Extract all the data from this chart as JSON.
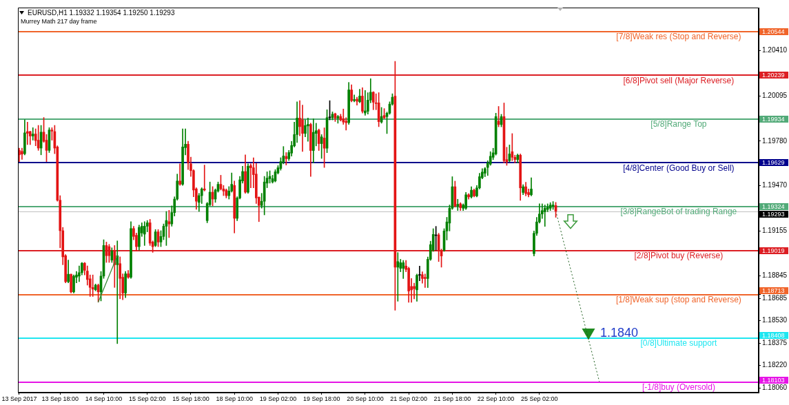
{
  "chart_data": {
    "type": "candlestick",
    "title": "EURUSD,H1 1.19332 1.19354 1.19250 1.19293",
    "subtitle": "Murrey Math 217 day frame",
    "categories": [
      "13 Sep 2017",
      null,
      null,
      null,
      null,
      null,
      null,
      null,
      null,
      null,
      null,
      null,
      null,
      null,
      null,
      "13 Sep 18:00",
      null,
      null,
      null,
      null,
      null,
      null,
      null,
      null,
      null,
      null,
      null,
      null,
      null,
      null,
      null,
      "14 Sep 10:00",
      null,
      null,
      null,
      null,
      null,
      null,
      null,
      null,
      null,
      null,
      null,
      null,
      null,
      null,
      null,
      "15 Sep 02:00",
      null,
      null,
      null,
      null,
      null,
      null,
      null,
      null,
      null,
      null,
      null,
      null,
      null,
      null,
      null,
      "15 Sep 18:00",
      null,
      null,
      null,
      null,
      null,
      null,
      null,
      null,
      null,
      null,
      null,
      null,
      null,
      null,
      null,
      "18 Sep 10:00",
      null,
      null,
      null,
      null,
      null,
      null,
      null,
      null,
      null,
      null,
      null,
      null,
      null,
      null,
      null,
      "19 Sep 02:00",
      null,
      null,
      null,
      null,
      null,
      null,
      null,
      null,
      null,
      null,
      null,
      null,
      null,
      null,
      null,
      "19 Sep 18:00",
      null,
      null,
      null,
      null,
      null,
      null,
      null,
      null,
      null,
      null,
      null,
      null,
      null,
      null,
      null,
      "20 Sep 10:00",
      null,
      null,
      null,
      null,
      null,
      null,
      null,
      null,
      null,
      null,
      null,
      null,
      null,
      null,
      null,
      "21 Sep 02:00",
      null,
      null,
      null,
      null,
      null,
      null,
      null,
      null,
      null,
      null,
      null,
      null,
      null,
      null,
      null,
      "21 Sep 18:00",
      null,
      null,
      null,
      null,
      null,
      null,
      null,
      null,
      null,
      null,
      null,
      null,
      null,
      null,
      null,
      "22 Sep 10:00",
      null,
      null,
      null,
      null,
      null,
      null,
      null,
      null,
      null,
      null,
      null,
      null,
      null,
      null,
      null,
      "25 Sep 02:00",
      null,
      null,
      null,
      null,
      null,
      null,
      null,
      null,
      null,
      null,
      null,
      null,
      null,
      null,
      null,
      null,
      null,
      null,
      null,
      null,
      null,
      null,
      null,
      null,
      null,
      null,
      null,
      null,
      null,
      null,
      null,
      null,
      null,
      null,
      null,
      null,
      null,
      null,
      null,
      null,
      null,
      null,
      null,
      null,
      null,
      null,
      null,
      null,
      null,
      null,
      null,
      null,
      null,
      null,
      null,
      null,
      null,
      null,
      null,
      null,
      null,
      null,
      null,
      null,
      null,
      null,
      null,
      null,
      null,
      null,
      null,
      null,
      null,
      null,
      null,
      null,
      null,
      null,
      null,
      null
    ],
    "ohlc": [
      [
        1.19716,
        1.19732,
        1.19638,
        1.19685
      ],
      [
        1.19709,
        1.19732,
        1.19653,
        1.1969
      ],
      [
        1.19693,
        1.19929,
        1.19685,
        1.19838
      ],
      [
        1.19847,
        1.19913,
        1.19756,
        1.19835
      ],
      [
        1.19847,
        1.1985,
        1.19756,
        1.19816
      ],
      [
        1.19816,
        1.19874,
        1.19787,
        1.1983
      ],
      [
        1.1983,
        1.19866,
        1.19748,
        1.19784
      ],
      [
        1.19787,
        1.1989,
        1.19716,
        1.19732
      ],
      [
        1.19732,
        1.1989,
        1.19685,
        1.19843
      ],
      [
        1.19843,
        1.19945,
        1.19772,
        1.19779
      ],
      [
        1.19787,
        1.19827,
        1.19638,
        1.19716
      ],
      [
        1.19716,
        1.19874,
        1.19701,
        1.19858
      ],
      [
        1.19858,
        1.19874,
        1.19787,
        1.1985
      ],
      [
        1.19847,
        1.1989,
        1.19693,
        1.19732
      ],
      [
        1.1974,
        1.19748,
        1.19362,
        1.19369
      ],
      [
        1.19369,
        1.19401,
        1.19038,
        1.19157
      ],
      [
        1.19157,
        1.1918,
        1.1892,
        1.18975
      ],
      [
        1.18983,
        1.18991,
        1.18794,
        1.18802
      ],
      [
        1.18802,
        1.18952,
        1.18794,
        1.18854
      ],
      [
        1.18854,
        1.18856,
        1.18723,
        1.18731
      ],
      [
        1.18731,
        1.18849,
        1.18723,
        1.18841
      ],
      [
        1.18833,
        1.18873,
        1.18794,
        1.18849
      ],
      [
        1.18841,
        1.18912,
        1.18802,
        1.18865
      ],
      [
        1.18865,
        1.18936,
        1.18849,
        1.18931
      ],
      [
        1.18931,
        1.18936,
        1.18849,
        1.18881
      ],
      [
        1.18876,
        1.18912,
        1.18778,
        1.18817
      ],
      [
        1.18822,
        1.18849,
        1.18699,
        1.18762
      ],
      [
        1.18762,
        1.18849,
        1.18699,
        1.1875
      ],
      [
        1.18746,
        1.18786,
        1.18738,
        1.18778
      ],
      [
        1.18778,
        1.18786,
        1.1866,
        1.18731
      ],
      [
        1.18731,
        1.18873,
        1.18668,
        1.18841
      ],
      [
        1.18841,
        1.19094,
        1.18825,
        1.19054
      ],
      [
        1.19054,
        1.19078,
        1.18936,
        1.18983
      ],
      [
        1.19046,
        1.19062,
        1.18936,
        1.18983
      ],
      [
        1.18952,
        1.19038,
        1.18936,
        1.19014
      ],
      [
        1.19014,
        1.19054,
        1.18762,
        1.1892
      ],
      [
        1.1892,
        1.19086,
        1.18371,
        1.18983
      ],
      [
        1.18928,
        1.18975,
        1.18683,
        1.18825
      ],
      [
        1.18833,
        1.18857,
        1.18676,
        1.18723
      ],
      [
        1.18723,
        1.18873,
        1.18691,
        1.18857
      ],
      [
        1.18857,
        1.18881,
        1.18825,
        1.18833
      ],
      [
        1.18833,
        1.1922,
        1.18825,
        1.19172
      ],
      [
        1.19172,
        1.19188,
        1.19094,
        1.19117
      ],
      [
        1.19125,
        1.19141,
        1.19014,
        1.19046
      ],
      [
        1.19046,
        1.19196,
        1.19022,
        1.1918
      ],
      [
        1.19141,
        1.19212,
        1.19117,
        1.19188
      ],
      [
        1.19133,
        1.1922,
        1.19054,
        1.19188
      ],
      [
        1.19188,
        1.19228,
        1.19149,
        1.19212
      ],
      [
        1.19212,
        1.19236,
        1.19054,
        1.1907
      ],
      [
        1.19078,
        1.19086,
        1.19006,
        1.19046
      ],
      [
        1.19054,
        1.19165,
        1.19046,
        1.19149
      ],
      [
        1.19149,
        1.19165,
        1.19046,
        1.19078
      ],
      [
        1.19078,
        1.19157,
        1.19046,
        1.19117
      ],
      [
        1.19117,
        1.19204,
        1.19094,
        1.19188
      ],
      [
        1.19188,
        1.19291,
        1.19054,
        1.19228
      ],
      [
        1.1922,
        1.19299,
        1.19109,
        1.19204
      ],
      [
        1.19204,
        1.1933,
        1.19188,
        1.19283
      ],
      [
        1.19283,
        1.19393,
        1.19259,
        1.19377
      ],
      [
        1.19377,
        1.19551,
        1.19369,
        1.19503
      ],
      [
        1.19503,
        1.19622,
        1.19472,
        1.1948
      ],
      [
        1.1948,
        1.19866,
        1.19472,
        1.1974
      ],
      [
        1.19735,
        1.19866,
        1.19685,
        1.19759
      ],
      [
        1.19759,
        1.19779,
        1.19582,
        1.1963
      ],
      [
        1.19622,
        1.19669,
        1.19535,
        1.19575
      ],
      [
        1.19575,
        1.19582,
        1.19393,
        1.1944
      ],
      [
        1.19448,
        1.19456,
        1.19306,
        1.19362
      ],
      [
        1.19354,
        1.19417,
        1.19291,
        1.19401
      ],
      [
        1.19401,
        1.19456,
        1.19346,
        1.19448
      ],
      [
        1.19448,
        1.19614,
        1.19433,
        1.1944
      ],
      [
        1.19227,
        1.19354,
        1.19212,
        1.19346
      ],
      [
        1.19338,
        1.19496,
        1.1933,
        1.19425
      ],
      [
        1.19425,
        1.19464,
        1.1933,
        1.19377
      ],
      [
        1.19377,
        1.19448,
        1.19354,
        1.1944
      ],
      [
        1.19433,
        1.19496,
        1.19425,
        1.1948
      ],
      [
        1.1948,
        1.19543,
        1.1944,
        1.19448
      ],
      [
        1.19448,
        1.19472,
        1.19401,
        1.19433
      ],
      [
        1.1944,
        1.19448,
        1.19385,
        1.19401
      ],
      [
        1.19401,
        1.19464,
        1.19377,
        1.19433
      ],
      [
        1.19433,
        1.19559,
        1.19425,
        1.1948
      ],
      [
        1.19472,
        1.19503,
        1.19141,
        1.19243
      ],
      [
        1.19243,
        1.19393,
        1.19227,
        1.19385
      ],
      [
        1.19385,
        1.19535,
        1.19377,
        1.19511
      ],
      [
        1.19503,
        1.19606,
        1.19488,
        1.19569
      ],
      [
        1.19569,
        1.19685,
        1.19417,
        1.19425
      ],
      [
        1.19425,
        1.19622,
        1.19417,
        1.19606
      ],
      [
        1.1961,
        1.19622,
        1.19456,
        1.19595
      ],
      [
        1.19595,
        1.19665,
        1.19456,
        1.19547
      ],
      [
        1.19551,
        1.19626,
        1.19346,
        1.19385
      ],
      [
        1.1939,
        1.19393,
        1.1922,
        1.19333
      ],
      [
        1.19333,
        1.19417,
        1.19314,
        1.19362
      ],
      [
        1.19362,
        1.19535,
        1.19267,
        1.19496
      ],
      [
        1.19488,
        1.19567,
        1.19456,
        1.19523
      ],
      [
        1.19519,
        1.19574,
        1.19488,
        1.19535
      ],
      [
        1.19496,
        1.19543,
        1.19488,
        1.19519
      ],
      [
        1.19503,
        1.19582,
        1.19496,
        1.19567
      ],
      [
        1.19559,
        1.1961,
        1.19551,
        1.19595
      ],
      [
        1.1959,
        1.19665,
        1.19578,
        1.19638
      ],
      [
        1.19633,
        1.19743,
        1.19622,
        1.19677
      ],
      [
        1.19674,
        1.19701,
        1.19614,
        1.19658
      ],
      [
        1.19658,
        1.19716,
        1.19645,
        1.19701
      ],
      [
        1.19697,
        1.19779,
        1.19676,
        1.1975
      ],
      [
        1.19747,
        1.19913,
        1.19739,
        1.19826
      ],
      [
        1.19826,
        1.20054,
        1.19771,
        1.19941
      ],
      [
        1.19941,
        1.20062,
        1.19818,
        1.19881
      ],
      [
        1.19928,
        1.20031,
        1.19708,
        1.19834
      ],
      [
        1.19834,
        1.19928,
        1.1981,
        1.19889
      ],
      [
        1.19886,
        1.19941,
        1.19779,
        1.19897
      ],
      [
        1.19897,
        1.19905,
        1.19534,
        1.19715
      ],
      [
        1.19715,
        1.19936,
        1.19629,
        1.19842
      ],
      [
        1.19834,
        1.19905,
        1.19747,
        1.19853
      ],
      [
        1.19857,
        1.19865,
        1.19715,
        1.19763
      ],
      [
        1.19763,
        1.19826,
        1.1966,
        1.1981
      ],
      [
        1.19802,
        1.19873,
        1.19597,
        1.19731
      ],
      [
        1.19731,
        1.19999,
        1.197,
        1.19944
      ],
      [
        1.19944,
        1.20062,
        1.19928,
        1.19944
      ],
      [
        1.19944,
        1.19984,
        1.19928,
        1.19968
      ],
      [
        1.19971,
        1.19976,
        1.19917,
        1.19941
      ],
      [
        1.19941,
        1.1996,
        1.19905,
        1.19952
      ],
      [
        1.19952,
        1.19968,
        1.1992,
        1.19928
      ],
      [
        1.19936,
        1.20004,
        1.19897,
        1.19913
      ],
      [
        1.1992,
        1.19944,
        1.19857,
        1.19909
      ],
      [
        1.19909,
        1.20189,
        1.19897,
        1.20137
      ],
      [
        1.20137,
        1.20173,
        1.20054,
        1.20062
      ],
      [
        1.20062,
        1.20102,
        1.20054,
        1.2007
      ],
      [
        1.20073,
        1.20086,
        1.20031,
        1.20058
      ],
      [
        1.20054,
        1.20141,
        1.20047,
        1.20094
      ],
      [
        1.20094,
        1.20152,
        1.19976,
        1.19988
      ],
      [
        1.19976,
        1.20133,
        1.1996,
        1.19991
      ],
      [
        1.19988,
        1.20118,
        1.19968,
        1.20066
      ],
      [
        1.20066,
        1.20215,
        1.20047,
        1.20121
      ],
      [
        1.20121,
        1.20125,
        1.19999,
        1.20051
      ],
      [
        1.20047,
        1.2011,
        1.19999,
        1.20042
      ],
      [
        1.20047,
        1.20118,
        1.19881,
        1.19916
      ],
      [
        1.19913,
        1.20015,
        1.19905,
        1.19952
      ],
      [
        1.19959,
        1.20007,
        1.19936,
        1.19943
      ],
      [
        1.19951,
        1.19983,
        1.19833,
        1.19975
      ],
      [
        1.19975,
        1.20054,
        1.19967,
        1.20038
      ],
      [
        1.20038,
        1.2011,
        1.2003,
        1.20086
      ],
      [
        1.20094,
        1.20336,
        1.18603,
        1.18903
      ],
      [
        1.18903,
        1.19005,
        1.18666,
        1.18942
      ],
      [
        1.18895,
        1.18958,
        1.18871,
        1.18934
      ],
      [
        1.18895,
        1.1895,
        1.18824,
        1.18934
      ],
      [
        1.18911,
        1.1895,
        1.18871,
        1.18887
      ],
      [
        1.18895,
        1.18903,
        1.18658,
        1.18737
      ],
      [
        1.18769,
        1.18824,
        1.18658,
        1.18745
      ],
      [
        1.18769,
        1.18792,
        1.18682,
        1.18753
      ],
      [
        1.18745,
        1.18855,
        1.18666,
        1.18847
      ],
      [
        1.18847,
        1.18911,
        1.18808,
        1.18847
      ],
      [
        1.18851,
        1.18871,
        1.18792,
        1.18824
      ],
      [
        1.18832,
        1.18855,
        1.18761,
        1.18824
      ],
      [
        1.18824,
        1.18974,
        1.18761,
        1.18958
      ],
      [
        1.18958,
        1.19084,
        1.1895,
        1.1906
      ],
      [
        1.19021,
        1.19171,
        1.19013,
        1.19131
      ],
      [
        1.19123,
        1.19187,
        1.19021,
        1.19123
      ],
      [
        1.19128,
        1.19139,
        1.18942,
        1.19021
      ],
      [
        1.19021,
        1.19029,
        1.18903,
        1.18981
      ],
      [
        1.19021,
        1.19171,
        1.19013,
        1.19155
      ],
      [
        1.19155,
        1.1925,
        1.19092,
        1.19218
      ],
      [
        1.1921,
        1.19336,
        1.19155,
        1.19313
      ],
      [
        1.19313,
        1.19533,
        1.19305,
        1.19463
      ],
      [
        1.19463,
        1.19502,
        1.19321,
        1.19328
      ],
      [
        1.19328,
        1.19376,
        1.19297,
        1.19341
      ],
      [
        1.19344,
        1.19352,
        1.19297,
        1.19317
      ],
      [
        1.19313,
        1.19344,
        1.19297,
        1.19336
      ],
      [
        1.19313,
        1.19423,
        1.19305,
        1.19407
      ],
      [
        1.19407,
        1.19415,
        1.19376,
        1.19392
      ],
      [
        1.19392,
        1.19463,
        1.19384,
        1.19439
      ],
      [
        1.19439,
        1.19447,
        1.19392,
        1.19399
      ],
      [
        1.19399,
        1.19471,
        1.19392,
        1.19455
      ],
      [
        1.19455,
        1.19557,
        1.19447,
        1.19533
      ],
      [
        1.19526,
        1.19589,
        1.19518,
        1.19565
      ],
      [
        1.19557,
        1.19597,
        1.19533,
        1.19589
      ],
      [
        1.19597,
        1.19644,
        1.19541,
        1.19628
      ],
      [
        1.1962,
        1.19707,
        1.19612,
        1.19675
      ],
      [
        1.19668,
        1.19731,
        1.19652,
        1.19699
      ],
      [
        1.19691,
        1.19975,
        1.19683,
        1.19951
      ],
      [
        1.1992,
        1.20022,
        1.1988,
        1.19896
      ],
      [
        1.19896,
        1.19967,
        1.1988,
        1.19951
      ],
      [
        1.19951,
        1.20046,
        1.19628,
        1.19644
      ],
      [
        1.19652,
        1.19738,
        1.19612,
        1.19636
      ],
      [
        1.19644,
        1.19754,
        1.19636,
        1.19691
      ],
      [
        1.19707,
        1.19833,
        1.19644,
        1.19668
      ],
      [
        1.19668,
        1.19683,
        1.19628,
        1.19652
      ],
      [
        1.19652,
        1.19691,
        1.19628,
        1.19683
      ],
      [
        1.19683,
        1.19691,
        1.19368,
        1.19455
      ],
      [
        1.19423,
        1.19478,
        1.19407,
        1.19463
      ],
      [
        1.19463,
        1.19494,
        1.19399,
        1.19415
      ],
      [
        1.19423,
        1.19447,
        1.19392,
        1.19407
      ],
      [
        1.19407,
        1.19526,
        1.19399,
        1.19447
      ],
      [
        1.18997,
        1.19155,
        1.18981,
        1.19139
      ],
      [
        1.19139,
        1.1925,
        1.19123,
        1.19218
      ],
      [
        1.19218,
        1.19344,
        1.1921,
        1.19273
      ],
      [
        1.19273,
        1.19344,
        1.19242,
        1.19297
      ],
      [
        1.19289,
        1.19336,
        1.19187,
        1.19313
      ],
      [
        1.19305,
        1.19344,
        1.19289,
        1.19321
      ],
      [
        1.19313,
        1.19352,
        1.19297,
        1.19336
      ],
      [
        1.19328,
        1.1936,
        1.19305,
        1.19336
      ],
      [
        1.19332,
        1.19354,
        1.1925,
        1.19293
      ],
      null,
      null,
      null,
      null,
      null,
      null,
      null,
      null,
      null,
      null,
      null,
      null,
      null,
      null,
      null,
      null,
      null,
      null,
      null,
      null,
      null,
      null,
      null,
      null,
      null,
      null,
      null,
      null,
      null,
      null,
      null,
      null,
      null,
      null,
      null,
      null,
      null,
      null,
      null,
      null,
      null,
      null,
      null,
      null,
      null,
      null,
      null,
      null,
      null,
      null,
      null,
      null,
      null,
      null,
      null,
      null,
      null,
      null,
      null,
      null,
      null,
      null,
      null,
      null,
      null,
      null,
      null,
      null,
      null,
      null,
      null,
      null,
      null,
      null
    ],
    "colors": [
      "#e31414",
      "#e31414",
      "#008000",
      "#e31414",
      "#e31414",
      "#008000",
      "#e31414",
      "#e31414",
      "#008000",
      "#e31414",
      "#e31414",
      "#008000",
      "#e31414",
      "#e31414",
      "#e31414",
      "#e31414",
      "#e31414",
      "#e31414",
      "#008000",
      "#e31414",
      "#008000",
      "#008000",
      "#008000",
      "#008000",
      "#e31414",
      "#e31414",
      "#e31414",
      "#e31414",
      "#008000",
      "#e31414",
      "#008000",
      "#008000",
      "#e31414",
      "#e31414",
      "#008000",
      "#e31414",
      "#008000",
      "#e31414",
      "#e31414",
      "#008000",
      "#e31414",
      "#008000",
      "#e31414",
      "#e31414",
      "#008000",
      "#008000",
      "#008000",
      "#008000",
      "#e31414",
      "#e31414",
      "#008000",
      "#e31414",
      "#008000",
      "#008000",
      "#008000",
      "#e31414",
      "#008000",
      "#008000",
      "#008000",
      "#e31414",
      "#008000",
      "#008000",
      "#e31414",
      "#e31414",
      "#e31414",
      "#e31414",
      "#008000",
      "#008000",
      "#e31414",
      "#008000",
      "#008000",
      "#e31414",
      "#008000",
      "#008000",
      "#e31414",
      "#e31414",
      "#e31414",
      "#008000",
      "#008000",
      "#e31414",
      "#008000",
      "#008000",
      "#008000",
      "#e31414",
      "#008000",
      "#e31414",
      "#e31414",
      "#e31414",
      "#e31414",
      "#008000",
      "#008000",
      "#008000",
      "#008000",
      "#008000",
      "#008000",
      "#008000",
      "#008000",
      "#008000",
      "#e31414",
      "#008000",
      "#008000",
      "#008000",
      "#008000",
      "#e31414",
      "#e31414",
      "#008000",
      "#008000",
      "#e31414",
      "#008000",
      "#008000",
      "#e31414",
      "#008000",
      "#e31414",
      "#008000",
      "#000000",
      "#008000",
      "#e31414",
      "#008000",
      "#e31414",
      "#e31414",
      "#e31414",
      "#008000",
      "#e31414",
      "#008000",
      "#e31414",
      "#008000",
      "#e31414",
      "#008000",
      "#008000",
      "#008000",
      "#e31414",
      "#e31414",
      "#e31414",
      "#008000",
      "#e31414",
      "#008000",
      "#008000",
      "#008000",
      "#e31414",
      "#008000",
      "#008000",
      "#008000",
      "#e31414",
      "#e31414",
      "#e31414",
      "#e31414",
      "#008000",
      "#000000",
      "#e31414",
      "#e31414",
      "#008000",
      "#008000",
      "#008000",
      "#000000",
      "#e31414",
      "#e31414",
      "#008000",
      "#008000",
      "#008000",
      "#008000",
      "#e31414",
      "#008000",
      "#e31414",
      "#008000",
      "#008000",
      "#e31414",
      "#008000",
      "#e31414",
      "#008000",
      "#008000",
      "#008000",
      "#008000",
      "#008000",
      "#008000",
      "#008000",
      "#008000",
      "#e31414",
      "#008000",
      "#e31414",
      "#e31414",
      "#008000",
      "#e31414",
      "#e31414",
      "#008000",
      "#e31414",
      "#008000",
      "#e31414",
      "#e31414",
      "#008000",
      "#008000",
      "#008000",
      "#008000",
      "#008000",
      "#008000",
      "#008000",
      "#008000",
      "#008000",
      "#e31414",
      null,
      null,
      null,
      null,
      null,
      null,
      null,
      null,
      null,
      null,
      null,
      null,
      null,
      null,
      null,
      null,
      null,
      null,
      null,
      null,
      null,
      null,
      null,
      null,
      null,
      null,
      null,
      null,
      null,
      null,
      null,
      null,
      null,
      null,
      null,
      null,
      null,
      null,
      null,
      null,
      null,
      null,
      null,
      null,
      null,
      null,
      null,
      null,
      null,
      null,
      null,
      null,
      null,
      null,
      null,
      null,
      null,
      null,
      null,
      null,
      null,
      null,
      null,
      null,
      null,
      null,
      null,
      null,
      null,
      null,
      null,
      null,
      null,
      null
    ],
    "series": [
      {
        "type": "line",
        "color": "#1d5e1d",
        "line_style": "dotted",
        "marker": "none",
        "values": [
          null,
          null,
          null,
          null,
          null,
          null,
          null,
          null,
          null,
          null,
          null,
          null,
          null,
          null,
          null,
          null,
          null,
          null,
          null,
          null,
          null,
          null,
          null,
          null,
          null,
          null,
          null,
          null,
          null,
          null,
          null,
          null,
          null,
          null,
          null,
          null,
          null,
          null,
          null,
          null,
          null,
          null,
          null,
          null,
          null,
          null,
          null,
          null,
          null,
          null,
          null,
          null,
          null,
          null,
          null,
          null,
          null,
          null,
          null,
          null,
          null,
          null,
          null,
          null,
          null,
          null,
          null,
          null,
          null,
          null,
          null,
          null,
          null,
          null,
          null,
          null,
          null,
          null,
          null,
          null,
          null,
          null,
          null,
          null,
          null,
          null,
          null,
          null,
          null,
          null,
          null,
          null,
          null,
          null,
          null,
          null,
          null,
          null,
          null,
          null,
          null,
          null,
          null,
          null,
          null,
          null,
          null,
          null,
          null,
          null,
          null,
          null,
          null,
          null,
          null,
          null,
          null,
          null,
          null,
          null,
          null,
          null,
          null,
          null,
          null,
          null,
          null,
          null,
          null,
          null,
          null,
          null,
          null,
          null,
          null,
          null,
          null,
          null,
          null,
          null,
          null,
          null,
          null,
          null,
          null,
          null,
          null,
          null,
          null,
          null,
          null,
          null,
          null,
          null,
          null,
          null,
          null,
          null,
          null,
          null,
          null,
          null,
          null,
          null,
          null,
          null,
          null,
          null,
          null,
          null,
          null,
          null,
          null,
          null,
          null,
          null,
          null,
          null,
          null,
          null,
          null,
          null,
          null,
          null,
          null,
          null,
          null,
          null,
          null,
          null,
          null,
          null,
          null,
          null,
          null,
          null,
          null,
          1.19293,
          1.19219,
          1.19145,
          1.1907,
          1.18996,
          1.18922,
          1.18848,
          1.18774,
          1.18699,
          1.18625,
          1.18551,
          1.18477,
          1.18403,
          1.18328,
          1.18254,
          1.1818,
          1.18106,
          null,
          null,
          null,
          null,
          null,
          null,
          null,
          null,
          null,
          null,
          null,
          null,
          null,
          null,
          null,
          null,
          null,
          null,
          null,
          null,
          null,
          null,
          null,
          null,
          null,
          null,
          null,
          null,
          null,
          null,
          null,
          null,
          null,
          null,
          null,
          null,
          null,
          null,
          null,
          null,
          null,
          null,
          null,
          null,
          null,
          null,
          null,
          null,
          null,
          null,
          null,
          null,
          null,
          null,
          null,
          null,
          null,
          null
        ]
      },
      {
        "type": "scatter",
        "color": "#1f8a1f",
        "marker": "triangle",
        "values": [
          null,
          null,
          null,
          null,
          null,
          null,
          null,
          null,
          null,
          null,
          null,
          null,
          null,
          null,
          null,
          null,
          null,
          null,
          null,
          null,
          null,
          null,
          null,
          null,
          null,
          null,
          null,
          null,
          null,
          null,
          null,
          null,
          null,
          null,
          null,
          null,
          null,
          null,
          null,
          null,
          null,
          null,
          null,
          null,
          null,
          null,
          null,
          null,
          null,
          null,
          null,
          null,
          null,
          null,
          null,
          null,
          null,
          null,
          null,
          null,
          null,
          null,
          null,
          null,
          null,
          null,
          null,
          null,
          null,
          null,
          null,
          null,
          null,
          null,
          null,
          null,
          null,
          null,
          null,
          null,
          null,
          null,
          null,
          null,
          null,
          null,
          null,
          null,
          null,
          null,
          null,
          null,
          null,
          null,
          null,
          null,
          null,
          null,
          null,
          null,
          null,
          null,
          null,
          null,
          null,
          null,
          null,
          null,
          null,
          null,
          null,
          null,
          null,
          null,
          null,
          null,
          null,
          null,
          null,
          null,
          null,
          null,
          null,
          null,
          null,
          null,
          null,
          null,
          null,
          null,
          null,
          null,
          null,
          null,
          null,
          null,
          null,
          null,
          null,
          null,
          null,
          null,
          null,
          null,
          null,
          null,
          null,
          null,
          null,
          null,
          null,
          null,
          null,
          null,
          null,
          null,
          null,
          null,
          null,
          null,
          null,
          null,
          null,
          null,
          null,
          null,
          null,
          null,
          null,
          null,
          null,
          null,
          null,
          null,
          null,
          null,
          null,
          null,
          null,
          null,
          null,
          null,
          null,
          null,
          null,
          null,
          null,
          null,
          null,
          null,
          null,
          null,
          null,
          null,
          null,
          null,
          null,
          null,
          null,
          null,
          null,
          null,
          null,
          null,
          null,
          null,
          null,
          null,
          null,
          1.1845,
          null,
          null,
          null,
          null,
          null,
          null,
          null,
          null,
          null,
          null,
          null,
          null,
          null,
          null,
          null,
          null,
          null,
          null,
          null,
          null,
          null,
          null,
          null,
          null,
          null,
          null,
          null,
          null,
          null,
          null,
          null,
          null,
          null,
          null,
          null,
          null,
          null,
          null,
          null,
          null,
          null,
          null,
          null,
          null,
          null,
          null,
          null,
          null,
          null,
          null,
          null,
          null,
          null,
          null,
          null,
          null,
          null,
          null,
          null,
          null,
          null,
          null
        ]
      }
    ],
    "ylim": [
      1.1803,
      1.2071
    ],
    "yticks": [
      1.20544,
      {
        "value": 1.2041,
        "label": "1.20410"
      },
      1.20239,
      1.20095,
      1.19934,
      {
        "value": 1.1978,
        "label": "1.19780"
      },
      1.19629,
      {
        "value": 1.1947,
        "label": "1.19470"
      },
      1.19324,
      1.19293,
      1.19155,
      1.19019,
      1.18845,
      1.18713,
      1.18685,
      {
        "value": 1.1853,
        "label": "1.18530"
      },
      1.18408,
      1.18375,
      {
        "value": 1.1822,
        "label": "1.18220"
      },
      1.18103,
      {
        "value": 1.1806,
        "label": "1.18060"
      }
    ],
    "ref_lines": [
      {
        "axis": "y",
        "value": 1.20544,
        "label": "[7/8]Weak res (Stop and Reverse)",
        "color": "#f0642a"
      },
      {
        "axis": "y",
        "value": 1.20239,
        "label": "[6/8]Pivot sell (Major Reverse)",
        "color": "#dc1e23"
      },
      {
        "axis": "y",
        "value": 1.19934,
        "label": "[5/8]Range Top",
        "color": "#52aa78"
      },
      {
        "axis": "y",
        "value": 1.19629,
        "label": "[4/8]Center (Good Buy or Sell)",
        "color": "#00008c"
      },
      {
        "axis": "y",
        "value": 1.19324,
        "label": "[3/8]RangeBot of trading Range",
        "color": "#52aa78"
      },
      {
        "axis": "y",
        "value": 1.19019,
        "label": "[2/8]Pivot buy (Reverse)",
        "color": "#dc1e23"
      },
      {
        "axis": "y",
        "value": 1.18713,
        "label": "[1/8]Weak sup (stop and Reverse)",
        "color": "#f0642a"
      },
      {
        "axis": "y",
        "value": 1.18408,
        "label": "[0/8]Ultimate support",
        "color": "#1ee6f0"
      },
      {
        "axis": "y",
        "value": 1.18103,
        "label": "[-1/8]buy (Oversold)",
        "color": "#e614e6"
      },
      {
        "axis": "y",
        "value": 1.19293,
        "color": "#c0c0c0"
      }
    ],
    "annotations": [
      {
        "text": "1.1840",
        "y": 1.184
      }
    ],
    "grid": false,
    "legend": false
  }
}
